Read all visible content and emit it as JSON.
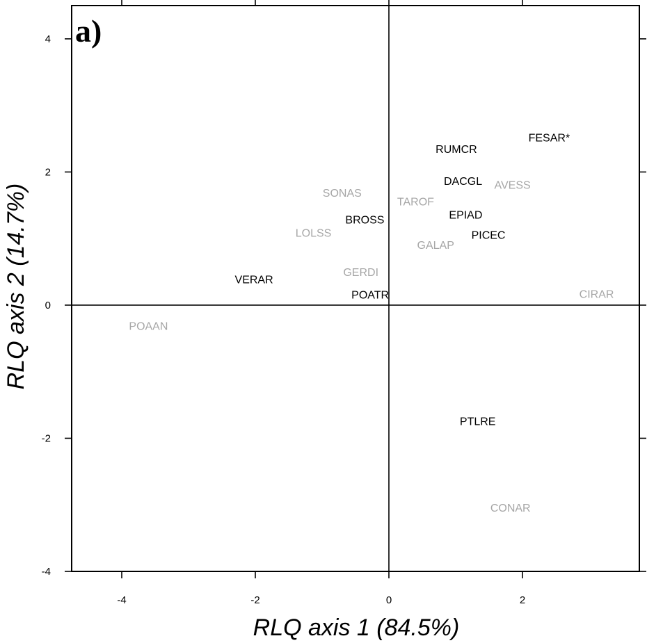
{
  "chart_data": {
    "type": "scatter",
    "panel_label": "a)",
    "xlabel": "RLQ axis 1 (84.5%)",
    "ylabel": "RLQ axis 2 (14.7%)",
    "xlim": [
      -4.75,
      3.75
    ],
    "ylim": [
      -4.0,
      4.5
    ],
    "x_ticks": [
      -4,
      -2,
      0,
      2
    ],
    "y_ticks": [
      -4,
      -2,
      0,
      2,
      4
    ],
    "grid": false,
    "colors": {
      "highlighted": "#000000",
      "other": "#a6a6a6"
    },
    "points": [
      {
        "label": "FESAR*",
        "x": 2.4,
        "y": 2.52,
        "group": "highlighted"
      },
      {
        "label": "RUMCR",
        "x": 1.01,
        "y": 2.35,
        "group": "highlighted"
      },
      {
        "label": "DACGL",
        "x": 1.11,
        "y": 1.87,
        "group": "highlighted"
      },
      {
        "label": "AVESS",
        "x": 1.85,
        "y": 1.81,
        "group": "other"
      },
      {
        "label": "SONAS",
        "x": -0.7,
        "y": 1.69,
        "group": "other"
      },
      {
        "label": "TAROF",
        "x": 0.4,
        "y": 1.56,
        "group": "other"
      },
      {
        "label": "EPIAD",
        "x": 1.15,
        "y": 1.36,
        "group": "highlighted"
      },
      {
        "label": "BROSS",
        "x": -0.36,
        "y": 1.29,
        "group": "highlighted"
      },
      {
        "label": "LOLSS",
        "x": -1.13,
        "y": 1.09,
        "group": "other"
      },
      {
        "label": "PICEC",
        "x": 1.49,
        "y": 1.06,
        "group": "highlighted"
      },
      {
        "label": "GALAP",
        "x": 0.7,
        "y": 0.91,
        "group": "other"
      },
      {
        "label": "GERDI",
        "x": -0.42,
        "y": 0.5,
        "group": "other"
      },
      {
        "label": "VERAR",
        "x": -2.02,
        "y": 0.39,
        "group": "highlighted"
      },
      {
        "label": "POATR",
        "x": -0.28,
        "y": 0.16,
        "group": "highlighted"
      },
      {
        "label": "CIRAR",
        "x": 3.11,
        "y": 0.17,
        "group": "other"
      },
      {
        "label": "POAAN",
        "x": -3.6,
        "y": -0.31,
        "group": "other"
      },
      {
        "label": "PTLRE",
        "x": 1.33,
        "y": -1.74,
        "group": "highlighted"
      },
      {
        "label": "CONAR",
        "x": 1.82,
        "y": -3.04,
        "group": "other"
      }
    ]
  }
}
